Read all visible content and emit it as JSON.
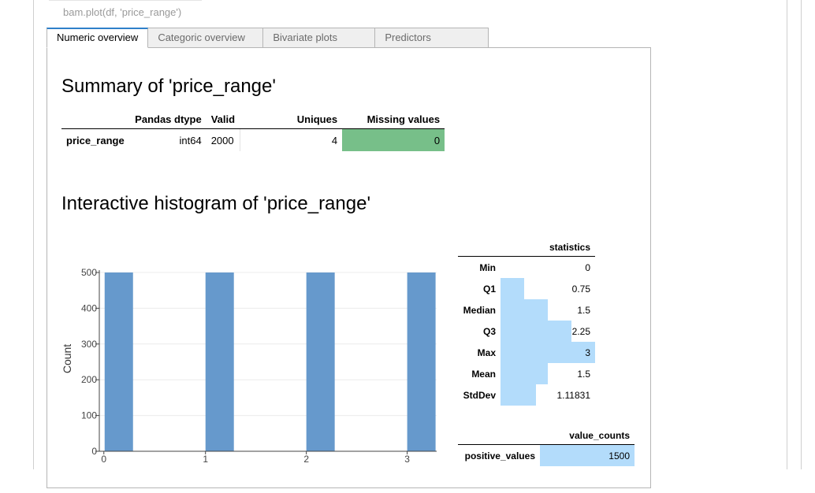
{
  "code": "bam.plot(df, 'price_range')",
  "tabs": [
    {
      "label": "Numeric overview",
      "active": true
    },
    {
      "label": "Categoric overview",
      "active": false
    },
    {
      "label": "Bivariate plots",
      "active": false
    },
    {
      "label": "Predictors",
      "active": false
    }
  ],
  "summary": {
    "title": "Summary of 'price_range'",
    "headers": [
      "Pandas dtype",
      "Valid",
      "Uniques",
      "Missing values"
    ],
    "row": {
      "name": "price_range",
      "dtype": "int64",
      "valid": "2000",
      "uniques": "4",
      "missing": "0"
    }
  },
  "histogram_title": "Interactive histogram of 'price_range'",
  "chart_data": {
    "type": "bar",
    "x": [
      0,
      1,
      2,
      3
    ],
    "values": [
      500,
      500,
      500,
      500
    ],
    "xlabel": "",
    "ylabel": "Count",
    "xticks": [
      "0",
      "1",
      "2",
      "3"
    ],
    "yticks": [
      "0",
      "100",
      "200",
      "300",
      "400",
      "500"
    ],
    "ylim": [
      0,
      500
    ],
    "xlim": [
      0,
      3
    ],
    "bar_color": "#6699cc",
    "grid": true
  },
  "statistics": {
    "header": "statistics",
    "rows": [
      {
        "label": "Min",
        "value": "0",
        "fraction": 0.0
      },
      {
        "label": "Q1",
        "value": "0.75",
        "fraction": 0.25
      },
      {
        "label": "Median",
        "value": "1.5",
        "fraction": 0.5
      },
      {
        "label": "Q3",
        "value": "2.25",
        "fraction": 0.75
      },
      {
        "label": "Max",
        "value": "3",
        "fraction": 1.0
      },
      {
        "label": "Mean",
        "value": "1.5",
        "fraction": 0.5
      },
      {
        "label": "StdDev",
        "value": "1.11831",
        "fraction": 0.373
      }
    ]
  },
  "value_counts": {
    "header": "value_counts",
    "rows": [
      {
        "label": "positive_values",
        "value": "1500",
        "fraction": 1.0
      }
    ]
  },
  "colors": {
    "missing_ok": "#77bf89",
    "stat_bar": "#b3dcfb",
    "tab_accent": "#2f80c9"
  }
}
